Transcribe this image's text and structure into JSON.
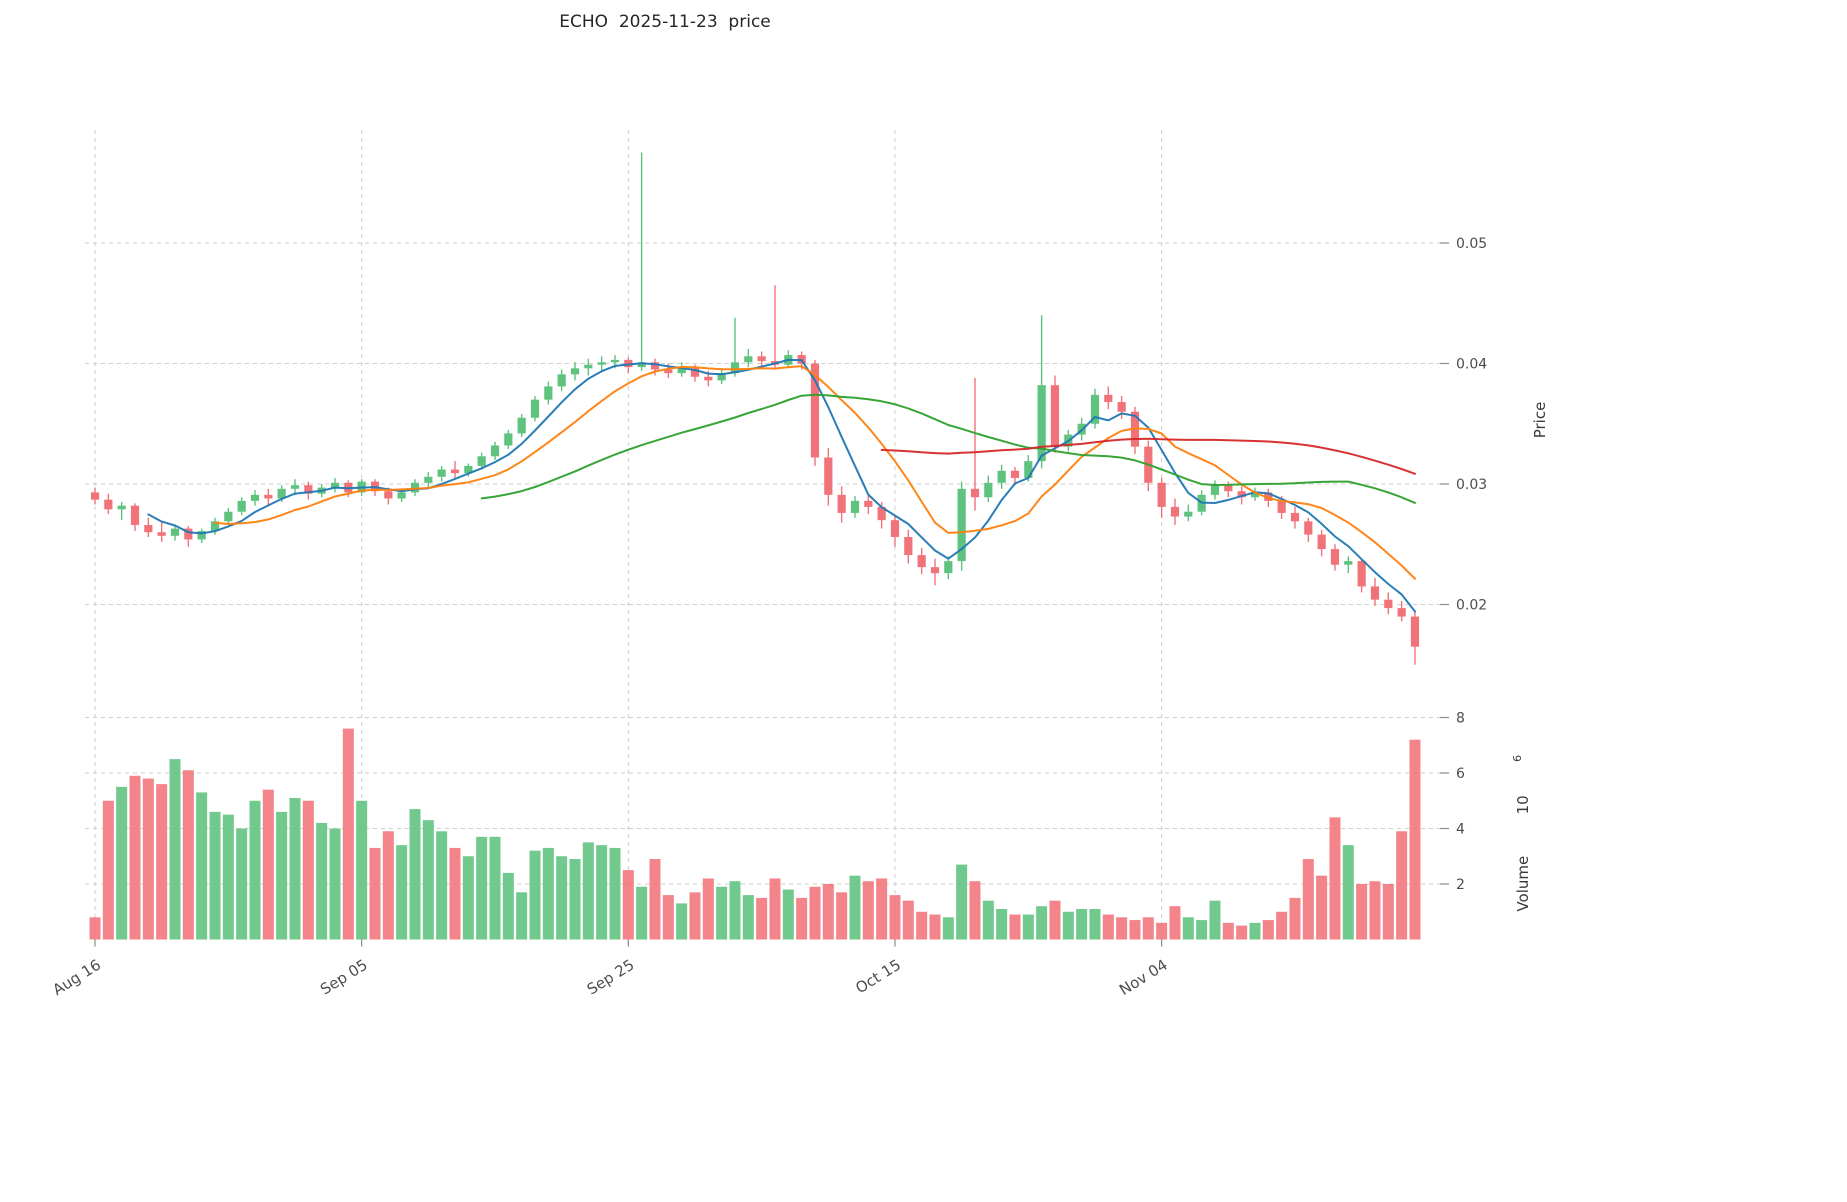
{
  "chart_data": {
    "type": "candlestick",
    "title": "ECHO  2025-11-23  price",
    "ylabel": "Price",
    "volume_label_word": "Volume",
    "volume_label_base": "10",
    "volume_label_exp": "6",
    "x_tick_labels": [
      "Aug 16",
      "Sep 05",
      "Sep 25",
      "Oct 15",
      "Nov 04"
    ],
    "x_tick_indices": [
      0,
      20,
      40,
      60,
      80
    ],
    "price_ticks": [
      "0.02",
      "0.03",
      "0.04",
      "0.05"
    ],
    "price_tick_values": [
      0.02,
      0.03,
      0.04,
      0.05
    ],
    "volume_ticks": [
      2,
      4,
      6,
      8
    ],
    "price_range": [
      0.013,
      0.0595
    ],
    "volume_range": [
      0,
      8.6
    ],
    "grid": true,
    "colors": {
      "up": "#5fc27e",
      "down": "#f1737a",
      "ma5": "#1f77b4",
      "ma10": "#ff7f0e",
      "ma30": "#2ca02c",
      "ma60": "#d62728",
      "grid": "#c9c9c9",
      "tick_text": "#4d4d4d"
    },
    "moving_averages": [
      {
        "name": "ma-5",
        "window": 5,
        "color": "#1f77b4"
      },
      {
        "name": "ma-10",
        "window": 10,
        "color": "#ff7f0e"
      },
      {
        "name": "ma-30",
        "window": 30,
        "color": "#2ca02c"
      },
      {
        "name": "ma-60",
        "window": 60,
        "color": "#d62728"
      }
    ],
    "ohlc": [
      [
        0.0293,
        0.0297,
        0.0283,
        0.0287
      ],
      [
        0.0287,
        0.0292,
        0.0275,
        0.0279
      ],
      [
        0.0279,
        0.0285,
        0.027,
        0.0282
      ],
      [
        0.0282,
        0.0284,
        0.0261,
        0.0266
      ],
      [
        0.0266,
        0.0272,
        0.0256,
        0.026
      ],
      [
        0.026,
        0.0268,
        0.0252,
        0.0257
      ],
      [
        0.0257,
        0.0266,
        0.0253,
        0.0263
      ],
      [
        0.0263,
        0.0265,
        0.0248,
        0.0254
      ],
      [
        0.0254,
        0.0263,
        0.0251,
        0.0261
      ],
      [
        0.0261,
        0.0272,
        0.0258,
        0.0269
      ],
      [
        0.0269,
        0.028,
        0.0266,
        0.0277
      ],
      [
        0.0277,
        0.0289,
        0.0274,
        0.0286
      ],
      [
        0.0286,
        0.0295,
        0.0282,
        0.0291
      ],
      [
        0.0291,
        0.0296,
        0.0283,
        0.0288
      ],
      [
        0.0288,
        0.0299,
        0.0285,
        0.0296
      ],
      [
        0.0296,
        0.0304,
        0.0291,
        0.0299
      ],
      [
        0.0299,
        0.0302,
        0.0287,
        0.0292
      ],
      [
        0.0292,
        0.03,
        0.0289,
        0.0297
      ],
      [
        0.0297,
        0.0305,
        0.0293,
        0.0301
      ],
      [
        0.0301,
        0.0303,
        0.0289,
        0.0293
      ],
      [
        0.0293,
        0.0304,
        0.029,
        0.0302
      ],
      [
        0.0302,
        0.0304,
        0.029,
        0.0294
      ],
      [
        0.0294,
        0.0297,
        0.0283,
        0.0288
      ],
      [
        0.0288,
        0.0296,
        0.0285,
        0.0293
      ],
      [
        0.0293,
        0.0304,
        0.029,
        0.0301
      ],
      [
        0.0301,
        0.031,
        0.0297,
        0.0306
      ],
      [
        0.0306,
        0.0315,
        0.0302,
        0.0312
      ],
      [
        0.0312,
        0.0319,
        0.0305,
        0.0309
      ],
      [
        0.0309,
        0.0317,
        0.0306,
        0.0315
      ],
      [
        0.0315,
        0.0326,
        0.0312,
        0.0323
      ],
      [
        0.0323,
        0.0335,
        0.032,
        0.0332
      ],
      [
        0.0332,
        0.0345,
        0.0329,
        0.0342
      ],
      [
        0.0342,
        0.0358,
        0.0339,
        0.0355
      ],
      [
        0.0355,
        0.0373,
        0.0352,
        0.037
      ],
      [
        0.037,
        0.0385,
        0.0366,
        0.0381
      ],
      [
        0.0381,
        0.0395,
        0.0377,
        0.0391
      ],
      [
        0.0391,
        0.0401,
        0.0386,
        0.0396
      ],
      [
        0.0396,
        0.0404,
        0.039,
        0.0399
      ],
      [
        0.0399,
        0.0406,
        0.0393,
        0.0401
      ],
      [
        0.0401,
        0.0407,
        0.0396,
        0.0403
      ],
      [
        0.0403,
        0.0405,
        0.0392,
        0.0397
      ],
      [
        0.0397,
        0.0575,
        0.0394,
        0.0401
      ],
      [
        0.0401,
        0.0404,
        0.039,
        0.0395
      ],
      [
        0.0395,
        0.04,
        0.0388,
        0.0392
      ],
      [
        0.0392,
        0.0401,
        0.0389,
        0.0396
      ],
      [
        0.0396,
        0.0399,
        0.0385,
        0.0389
      ],
      [
        0.0389,
        0.0394,
        0.0381,
        0.0386
      ],
      [
        0.0386,
        0.0396,
        0.0383,
        0.0392
      ],
      [
        0.0392,
        0.0438,
        0.0389,
        0.0401
      ],
      [
        0.0401,
        0.0412,
        0.0397,
        0.0406
      ],
      [
        0.0406,
        0.041,
        0.0396,
        0.0402
      ],
      [
        0.0402,
        0.0465,
        0.0395,
        0.0399
      ],
      [
        0.0399,
        0.0411,
        0.0396,
        0.0407
      ],
      [
        0.0407,
        0.041,
        0.0395,
        0.04
      ],
      [
        0.04,
        0.0403,
        0.0315,
        0.0322
      ],
      [
        0.0322,
        0.033,
        0.0282,
        0.0291
      ],
      [
        0.0291,
        0.0298,
        0.0268,
        0.0276
      ],
      [
        0.0276,
        0.029,
        0.0272,
        0.0286
      ],
      [
        0.0286,
        0.0292,
        0.0275,
        0.0281
      ],
      [
        0.0281,
        0.0285,
        0.0263,
        0.027
      ],
      [
        0.027,
        0.0274,
        0.0248,
        0.0256
      ],
      [
        0.0256,
        0.0262,
        0.0234,
        0.0241
      ],
      [
        0.0241,
        0.0247,
        0.0225,
        0.0231
      ],
      [
        0.0231,
        0.0238,
        0.0216,
        0.0226
      ],
      [
        0.0226,
        0.024,
        0.0221,
        0.0236
      ],
      [
        0.0236,
        0.0302,
        0.0228,
        0.0296
      ],
      [
        0.0296,
        0.0388,
        0.0278,
        0.0289
      ],
      [
        0.0289,
        0.0307,
        0.0285,
        0.0301
      ],
      [
        0.0301,
        0.0316,
        0.0296,
        0.0311
      ],
      [
        0.0311,
        0.0314,
        0.0299,
        0.0305
      ],
      [
        0.0305,
        0.0324,
        0.0302,
        0.0319
      ],
      [
        0.0319,
        0.044,
        0.0313,
        0.0382
      ],
      [
        0.0382,
        0.039,
        0.0326,
        0.0331
      ],
      [
        0.0331,
        0.0345,
        0.0327,
        0.0341
      ],
      [
        0.0341,
        0.0355,
        0.0336,
        0.035
      ],
      [
        0.035,
        0.0379,
        0.0346,
        0.0374
      ],
      [
        0.0374,
        0.0381,
        0.0362,
        0.0368
      ],
      [
        0.0368,
        0.0373,
        0.0354,
        0.036
      ],
      [
        0.036,
        0.0364,
        0.0325,
        0.0331
      ],
      [
        0.0331,
        0.0336,
        0.0294,
        0.0301
      ],
      [
        0.0301,
        0.0305,
        0.0272,
        0.0281
      ],
      [
        0.0281,
        0.0288,
        0.0266,
        0.0273
      ],
      [
        0.0273,
        0.0283,
        0.0269,
        0.0277
      ],
      [
        0.0277,
        0.0295,
        0.0274,
        0.0291
      ],
      [
        0.0291,
        0.0303,
        0.0287,
        0.0299
      ],
      [
        0.0299,
        0.0302,
        0.0289,
        0.0294
      ],
      [
        0.0294,
        0.0298,
        0.0283,
        0.0289
      ],
      [
        0.0289,
        0.0297,
        0.0286,
        0.0293
      ],
      [
        0.0293,
        0.0296,
        0.0281,
        0.0286
      ],
      [
        0.0286,
        0.029,
        0.0271,
        0.0276
      ],
      [
        0.0276,
        0.0281,
        0.0263,
        0.0269
      ],
      [
        0.0269,
        0.0272,
        0.0252,
        0.0258
      ],
      [
        0.0258,
        0.0262,
        0.024,
        0.0246
      ],
      [
        0.0246,
        0.025,
        0.0228,
        0.0233
      ],
      [
        0.0233,
        0.024,
        0.0226,
        0.0236
      ],
      [
        0.0236,
        0.0238,
        0.021,
        0.0215
      ],
      [
        0.0215,
        0.0222,
        0.0199,
        0.0204
      ],
      [
        0.0204,
        0.021,
        0.0192,
        0.0197
      ],
      [
        0.0197,
        0.0203,
        0.0186,
        0.019
      ],
      [
        0.019,
        0.0194,
        0.015,
        0.0165
      ]
    ],
    "volume": [
      0.8,
      5.0,
      5.5,
      5.9,
      5.8,
      5.6,
      6.5,
      6.1,
      5.3,
      4.6,
      4.5,
      4.0,
      5.0,
      5.4,
      4.6,
      5.1,
      5.0,
      4.2,
      4.0,
      7.6,
      5.0,
      3.3,
      3.9,
      3.4,
      4.7,
      4.3,
      3.9,
      3.3,
      3.0,
      3.7,
      3.7,
      2.4,
      1.7,
      3.2,
      3.3,
      3.0,
      2.9,
      3.5,
      3.4,
      3.3,
      2.5,
      1.9,
      2.9,
      1.6,
      1.3,
      1.7,
      2.2,
      1.9,
      2.1,
      1.6,
      1.5,
      2.2,
      1.8,
      1.5,
      1.9,
      2.0,
      1.7,
      2.3,
      2.1,
      2.2,
      1.6,
      1.4,
      1.0,
      0.9,
      0.8,
      2.7,
      2.1,
      1.4,
      1.1,
      0.9,
      0.9,
      1.2,
      1.4,
      1.0,
      1.1,
      1.1,
      0.9,
      0.8,
      0.7,
      0.8,
      0.6,
      1.2,
      0.8,
      0.7,
      1.4,
      0.6,
      0.5,
      0.6,
      0.7,
      1.0,
      1.5,
      2.9,
      2.3,
      4.4,
      3.4,
      2.0,
      2.1,
      2.0,
      3.9,
      7.2
    ]
  }
}
